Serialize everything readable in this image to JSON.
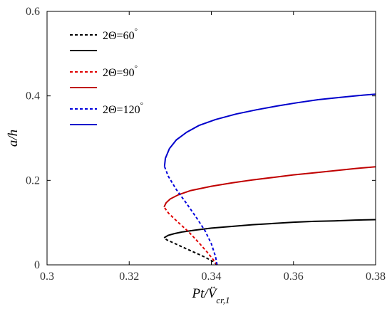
{
  "chart_data": {
    "type": "line",
    "xlabel": "Pt/V̈cr,1",
    "ylabel": "a/h",
    "xlim": [
      0.3,
      0.38
    ],
    "ylim": [
      0,
      0.6
    ],
    "xticks": [
      {
        "value": 0.3,
        "label": "0.3"
      },
      {
        "value": 0.32,
        "label": "0.32"
      },
      {
        "value": 0.34,
        "label": "0.34"
      },
      {
        "value": 0.36,
        "label": "0.36"
      },
      {
        "value": 0.38,
        "label": "0.38"
      }
    ],
    "yticks": [
      {
        "value": 0,
        "label": "0"
      },
      {
        "value": 0.2,
        "label": "0.2"
      },
      {
        "value": 0.4,
        "label": "0.4"
      },
      {
        "value": 0.6,
        "label": "0.6"
      }
    ],
    "legend_position": "top-left",
    "series": [
      {
        "name": "2Θ=60°",
        "legend_label": "2Θ=60",
        "legend_sup": "°",
        "color": "#000000",
        "style": "dashed",
        "points": [
          [
            0.3414,
            0.0
          ],
          [
            0.3404,
            0.008
          ],
          [
            0.3385,
            0.018
          ],
          [
            0.336,
            0.029
          ],
          [
            0.3335,
            0.04
          ],
          [
            0.331,
            0.051
          ],
          [
            0.3292,
            0.059
          ],
          [
            0.3285,
            0.064
          ]
        ]
      },
      {
        "name": "2Θ=60° (solid)",
        "legend_label": "",
        "legend_sup": "",
        "color": "#000000",
        "style": "solid",
        "points": [
          [
            0.3285,
            0.064
          ],
          [
            0.3295,
            0.07
          ],
          [
            0.331,
            0.074
          ],
          [
            0.333,
            0.078
          ],
          [
            0.336,
            0.082
          ],
          [
            0.34,
            0.087
          ],
          [
            0.345,
            0.091
          ],
          [
            0.35,
            0.095
          ],
          [
            0.355,
            0.098
          ],
          [
            0.36,
            0.101
          ],
          [
            0.365,
            0.103
          ],
          [
            0.37,
            0.104
          ],
          [
            0.375,
            0.106
          ],
          [
            0.38,
            0.107
          ]
        ]
      },
      {
        "name": "2Θ=90°",
        "legend_label": "2Θ=90",
        "legend_sup": "°",
        "color": "#e00000",
        "style": "dashed",
        "points": [
          [
            0.3414,
            0.0
          ],
          [
            0.3405,
            0.012
          ],
          [
            0.339,
            0.03
          ],
          [
            0.337,
            0.052
          ],
          [
            0.3345,
            0.078
          ],
          [
            0.332,
            0.1
          ],
          [
            0.3296,
            0.122
          ],
          [
            0.3285,
            0.137
          ]
        ]
      },
      {
        "name": "2Θ=90° (solid)",
        "legend_label": "",
        "legend_sup": "",
        "color": "#c00000",
        "style": "solid",
        "points": [
          [
            0.3285,
            0.137
          ],
          [
            0.329,
            0.147
          ],
          [
            0.33,
            0.156
          ],
          [
            0.332,
            0.166
          ],
          [
            0.335,
            0.176
          ],
          [
            0.34,
            0.186
          ],
          [
            0.345,
            0.194
          ],
          [
            0.35,
            0.201
          ],
          [
            0.355,
            0.207
          ],
          [
            0.36,
            0.213
          ],
          [
            0.365,
            0.218
          ],
          [
            0.37,
            0.223
          ],
          [
            0.375,
            0.228
          ],
          [
            0.38,
            0.232
          ]
        ]
      },
      {
        "name": "2Θ=120°",
        "legend_label": "2Θ=120",
        "legend_sup": "°",
        "color": "#0000dd",
        "style": "dashed",
        "points": [
          [
            0.3414,
            0.0
          ],
          [
            0.341,
            0.02
          ],
          [
            0.34,
            0.05
          ],
          [
            0.3385,
            0.08
          ],
          [
            0.3365,
            0.11
          ],
          [
            0.334,
            0.145
          ],
          [
            0.3315,
            0.178
          ],
          [
            0.3295,
            0.21
          ],
          [
            0.3286,
            0.233
          ]
        ]
      },
      {
        "name": "2Θ=120° (solid)",
        "legend_label": "",
        "legend_sup": "",
        "color": "#0000cc",
        "style": "solid",
        "points": [
          [
            0.3286,
            0.233
          ],
          [
            0.3288,
            0.252
          ],
          [
            0.3298,
            0.275
          ],
          [
            0.3315,
            0.296
          ],
          [
            0.334,
            0.314
          ],
          [
            0.337,
            0.33
          ],
          [
            0.341,
            0.344
          ],
          [
            0.346,
            0.357
          ],
          [
            0.351,
            0.367
          ],
          [
            0.356,
            0.376
          ],
          [
            0.361,
            0.384
          ],
          [
            0.366,
            0.391
          ],
          [
            0.371,
            0.396
          ],
          [
            0.376,
            0.401
          ],
          [
            0.38,
            0.404
          ]
        ]
      }
    ]
  }
}
